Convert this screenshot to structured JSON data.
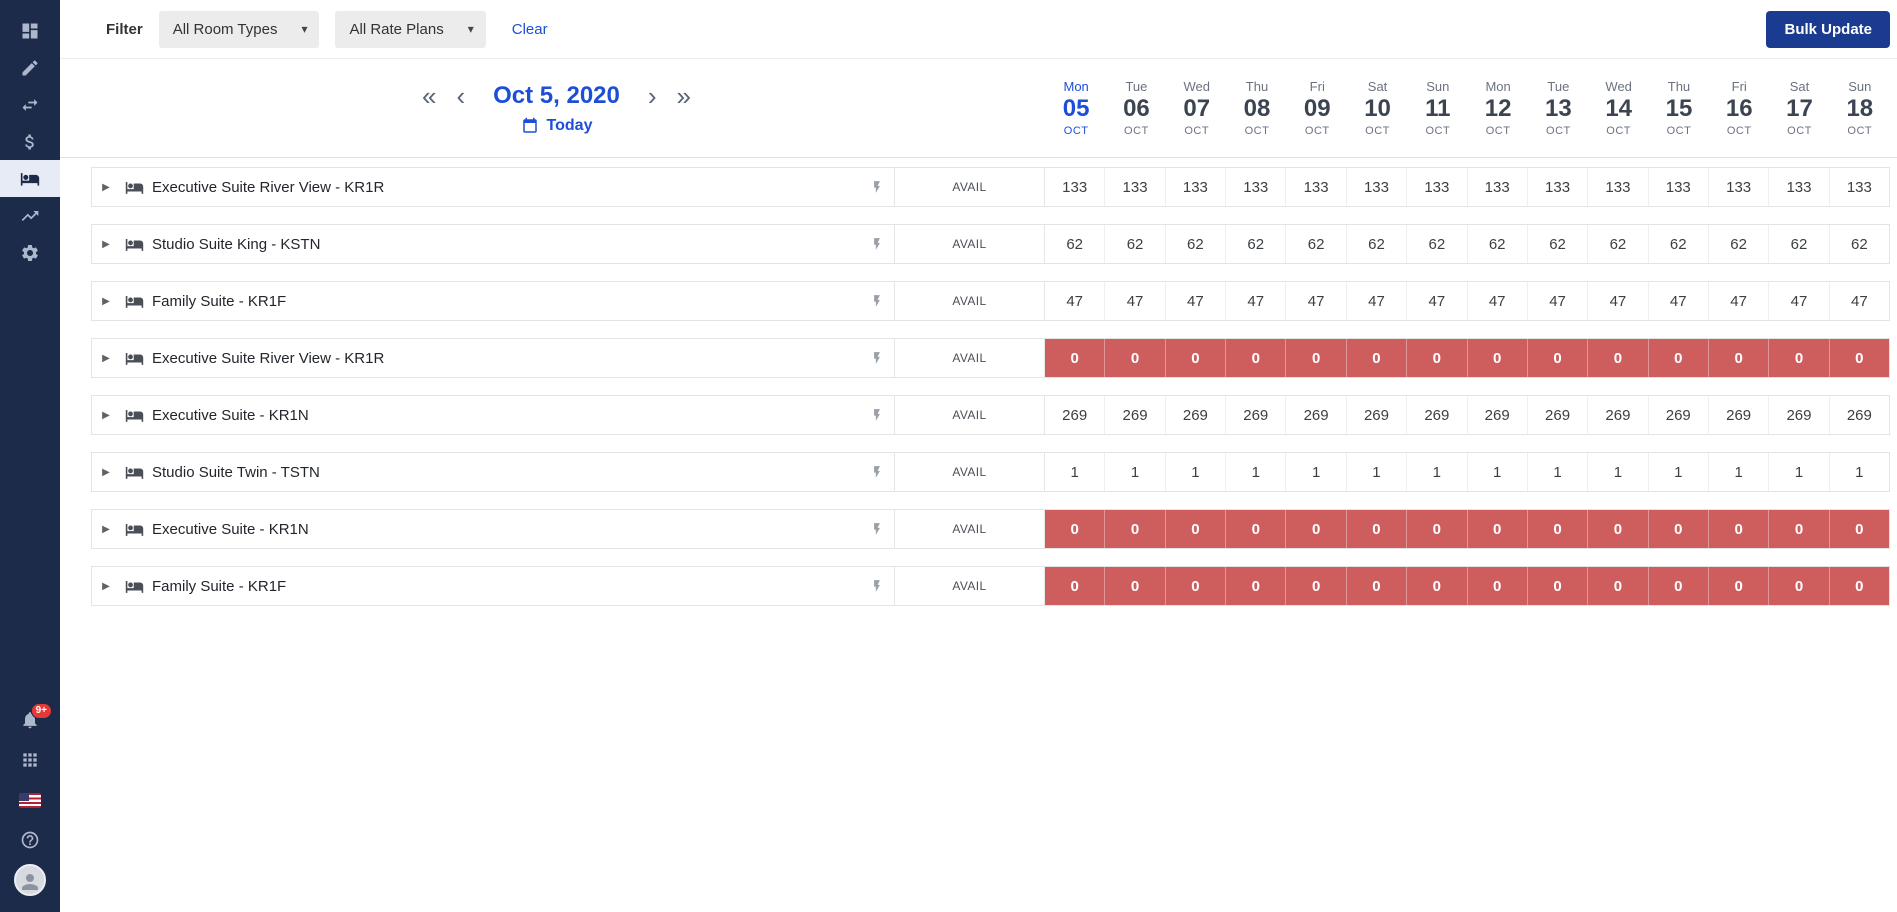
{
  "colors": {
    "sidebar_bg": "#1d2b4a",
    "accent_blue": "#1d4ed8",
    "bulk_button_blue": "#1a3b8f",
    "zero_cell_red": "#ce5e5e",
    "badge_red": "#e53935"
  },
  "icons": {
    "expander": "▶",
    "chevron_down": "▾"
  },
  "sidebar": {
    "top_items": [
      {
        "icon": "dashboard-icon",
        "active": false
      },
      {
        "icon": "edit-icon",
        "active": false
      },
      {
        "icon": "swap-icon",
        "active": false
      },
      {
        "icon": "dollar-icon",
        "active": false
      },
      {
        "icon": "bed-icon",
        "active": true
      },
      {
        "icon": "trending-icon",
        "active": false
      },
      {
        "icon": "settings-icon",
        "active": false
      }
    ],
    "bottom_items": [
      {
        "icon": "bell-icon",
        "badge": "9+"
      },
      {
        "icon": "apps-icon"
      },
      {
        "icon": "us-flag-icon"
      },
      {
        "icon": "help-icon"
      },
      {
        "icon": "avatar"
      }
    ]
  },
  "toolbar": {
    "filter_label": "Filter",
    "room_types_dropdown": "All Room Types",
    "rate_plans_dropdown": "All Rate Plans",
    "clear_label": "Clear",
    "bulk_update_label": "Bulk Update"
  },
  "calendar": {
    "title": "Oct 5, 2020",
    "today_label": "Today",
    "nav": {
      "first": "«",
      "prev": "‹",
      "next": "›",
      "last": "»"
    },
    "days": [
      {
        "dow": "Mon",
        "date": "05",
        "month": "OCT",
        "today": true
      },
      {
        "dow": "Tue",
        "date": "06",
        "month": "OCT",
        "today": false
      },
      {
        "dow": "Wed",
        "date": "07",
        "month": "OCT",
        "today": false
      },
      {
        "dow": "Thu",
        "date": "08",
        "month": "OCT",
        "today": false
      },
      {
        "dow": "Fri",
        "date": "09",
        "month": "OCT",
        "today": false
      },
      {
        "dow": "Sat",
        "date": "10",
        "month": "OCT",
        "today": false
      },
      {
        "dow": "Sun",
        "date": "11",
        "month": "OCT",
        "today": false
      },
      {
        "dow": "Mon",
        "date": "12",
        "month": "OCT",
        "today": false
      },
      {
        "dow": "Tue",
        "date": "13",
        "month": "OCT",
        "today": false
      },
      {
        "dow": "Wed",
        "date": "14",
        "month": "OCT",
        "today": false
      },
      {
        "dow": "Thu",
        "date": "15",
        "month": "OCT",
        "today": false
      },
      {
        "dow": "Fri",
        "date": "16",
        "month": "OCT",
        "today": false
      },
      {
        "dow": "Sat",
        "date": "17",
        "month": "OCT",
        "today": false
      },
      {
        "dow": "Sun",
        "date": "18",
        "month": "OCT",
        "today": false
      }
    ]
  },
  "grid": {
    "rows": [
      {
        "name": "Executive Suite River View - KR1R",
        "metric": "AVAIL",
        "zero": false,
        "values": [
          133,
          133,
          133,
          133,
          133,
          133,
          133,
          133,
          133,
          133,
          133,
          133,
          133,
          133
        ]
      },
      {
        "name": "Studio Suite King - KSTN",
        "metric": "AVAIL",
        "zero": false,
        "values": [
          62,
          62,
          62,
          62,
          62,
          62,
          62,
          62,
          62,
          62,
          62,
          62,
          62,
          62
        ]
      },
      {
        "name": "Family Suite - KR1F",
        "metric": "AVAIL",
        "zero": false,
        "values": [
          47,
          47,
          47,
          47,
          47,
          47,
          47,
          47,
          47,
          47,
          47,
          47,
          47,
          47
        ]
      },
      {
        "name": "Executive Suite River View - KR1R",
        "metric": "AVAIL",
        "zero": true,
        "values": [
          0,
          0,
          0,
          0,
          0,
          0,
          0,
          0,
          0,
          0,
          0,
          0,
          0,
          0
        ]
      },
      {
        "name": "Executive Suite - KR1N",
        "metric": "AVAIL",
        "zero": false,
        "values": [
          269,
          269,
          269,
          269,
          269,
          269,
          269,
          269,
          269,
          269,
          269,
          269,
          269,
          269
        ]
      },
      {
        "name": "Studio Suite Twin - TSTN",
        "metric": "AVAIL",
        "zero": false,
        "values": [
          1,
          1,
          1,
          1,
          1,
          1,
          1,
          1,
          1,
          1,
          1,
          1,
          1,
          1
        ]
      },
      {
        "name": "Executive Suite - KR1N",
        "metric": "AVAIL",
        "zero": true,
        "values": [
          0,
          0,
          0,
          0,
          0,
          0,
          0,
          0,
          0,
          0,
          0,
          0,
          0,
          0
        ]
      },
      {
        "name": "Family Suite - KR1F",
        "metric": "AVAIL",
        "zero": true,
        "values": [
          0,
          0,
          0,
          0,
          0,
          0,
          0,
          0,
          0,
          0,
          0,
          0,
          0,
          0
        ]
      }
    ]
  }
}
